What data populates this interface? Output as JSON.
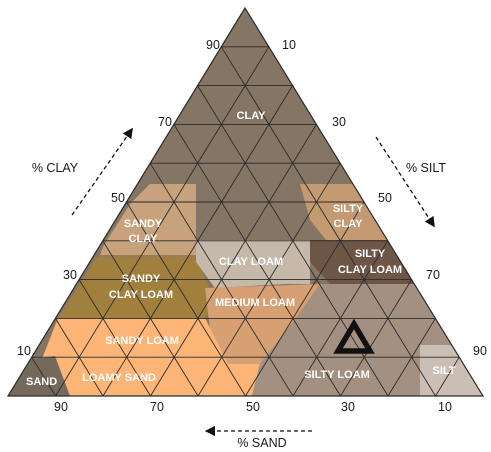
{
  "colors": {
    "clay": "#857565",
    "sandy_clay": "#c7a27c",
    "sandy_clay_dark": "#9a7c4e",
    "sandy_clay_loam": "#a1803e",
    "sandy_loam": "#fcb576",
    "sand": "#75695e",
    "loamy_sand": "#fcb576",
    "clay_loam": "#c7b9aa",
    "medium_loam": "#d6a072",
    "silty_clay": "#c39a72",
    "silty_clay_loam": "#6e5647",
    "silty_loam": "#a39080",
    "silt": "#cbbfb5",
    "grid": "#2b2b2b",
    "marker": "#111111"
  },
  "zones": {
    "clay": "CLAY",
    "sandy_clay": [
      "SANDY",
      "CLAY"
    ],
    "sandy_clay_loam": [
      "SANDY",
      "CLAY LOAM"
    ],
    "sandy_loam": "SANDY LOAM",
    "sand": "SAND",
    "loamy_sand": "LOAMY SAND",
    "clay_loam": "CLAY LOAM",
    "medium_loam": "MEDIUM LOAM",
    "silty_clay": [
      "SILTY",
      "CLAY"
    ],
    "silty_clay_loam": [
      "SILTY",
      "CLAY LOAM"
    ],
    "silty_loam": "SILTY LOAM",
    "silt": "SILT"
  },
  "axes": {
    "clay": {
      "title": "% CLAY",
      "ticks": [
        "90",
        "70",
        "50",
        "30",
        "10"
      ]
    },
    "silt": {
      "title": "% SILT",
      "ticks": [
        "10",
        "30",
        "50",
        "70",
        "90"
      ]
    },
    "sand": {
      "title": "% SAND",
      "ticks": [
        "90",
        "70",
        "50",
        "30",
        "10"
      ]
    }
  },
  "marker": {
    "shape": "triangle-outline",
    "zone": "silty_loam"
  }
}
